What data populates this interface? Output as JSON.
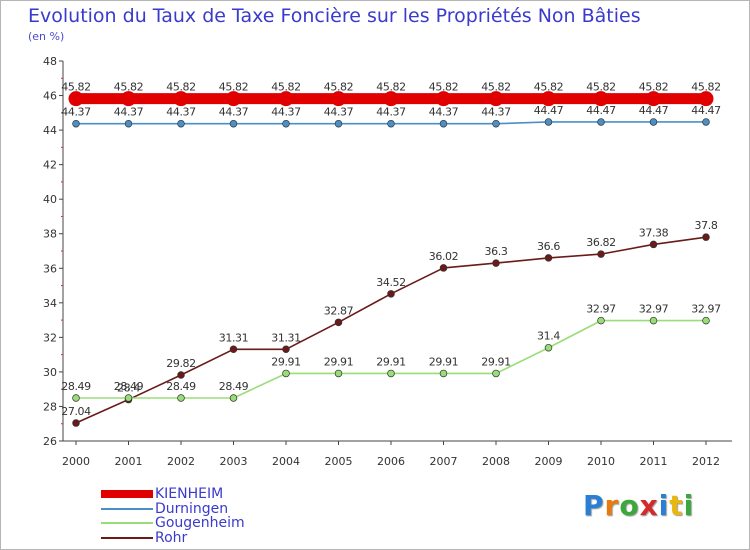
{
  "chart_data": {
    "type": "line",
    "title": "Evolution du Taux de Taxe Foncière sur les Propriétés Non Bâties",
    "subtitle": "(en %)",
    "xlabel": "",
    "ylabel": "",
    "x": [
      "2000",
      "2001",
      "2002",
      "2003",
      "2004",
      "2005",
      "2006",
      "2007",
      "2008",
      "2009",
      "2010",
      "2011",
      "2012"
    ],
    "ylim": [
      26,
      48
    ],
    "yticks": [
      26,
      28,
      30,
      32,
      34,
      36,
      38,
      40,
      42,
      44,
      46,
      48
    ],
    "grid": false,
    "legend_position": "bottom-left",
    "series": [
      {
        "name": "KIENHEIM",
        "color": "#e00000",
        "values": [
          45.82,
          45.82,
          45.82,
          45.82,
          45.82,
          45.82,
          45.82,
          45.82,
          45.82,
          45.82,
          45.82,
          45.82,
          45.82
        ],
        "labels": [
          "45.82",
          "45.82",
          "45.82",
          "45.82",
          "45.82",
          "45.82",
          "45.82",
          "45.82",
          "45.82",
          "45.82",
          "45.82",
          "45.82",
          "45.82"
        ]
      },
      {
        "name": "Durningen",
        "color": "#4a90c8",
        "values": [
          44.37,
          44.37,
          44.37,
          44.37,
          44.37,
          44.37,
          44.37,
          44.37,
          44.37,
          44.47,
          44.47,
          44.47,
          44.47
        ],
        "labels": [
          "44.37",
          "44.37",
          "44.37",
          "44.37",
          "44.37",
          "44.37",
          "44.37",
          "44.37",
          "44.37",
          "44.47",
          "44.47",
          "44.47",
          "44.47"
        ]
      },
      {
        "name": "Gougenheim",
        "color": "#99dd77",
        "values": [
          28.49,
          28.49,
          28.49,
          28.49,
          29.91,
          29.91,
          29.91,
          29.91,
          29.91,
          31.4,
          32.97,
          32.97,
          32.97
        ],
        "labels": [
          "28.49",
          "28.49",
          "28.49",
          "28.49",
          "29.91",
          "29.91",
          "29.91",
          "29.91",
          "29.91",
          "31.4",
          "32.97",
          "32.97",
          "32.97"
        ]
      },
      {
        "name": "Rohr",
        "color": "#6b1a1a",
        "values": [
          27.04,
          28.4,
          29.82,
          31.31,
          31.31,
          32.87,
          34.52,
          36.02,
          36.3,
          36.6,
          36.82,
          37.38,
          37.8
        ],
        "labels": [
          "27.04",
          "28.4",
          "29.82",
          "31.31",
          "31.31",
          "32.87",
          "34.52",
          "36.02",
          "36.3",
          "36.6",
          "36.82",
          "37.38",
          "37.8"
        ]
      }
    ]
  },
  "logo": {
    "letters": [
      "P",
      "r",
      "o",
      "x",
      "i",
      "t",
      "i"
    ],
    "colors": [
      "#2a7fd4",
      "#e87a10",
      "#3aa83a",
      "#d42a2a",
      "#2a7fd4",
      "#e8b810",
      "#3aa83a"
    ]
  }
}
